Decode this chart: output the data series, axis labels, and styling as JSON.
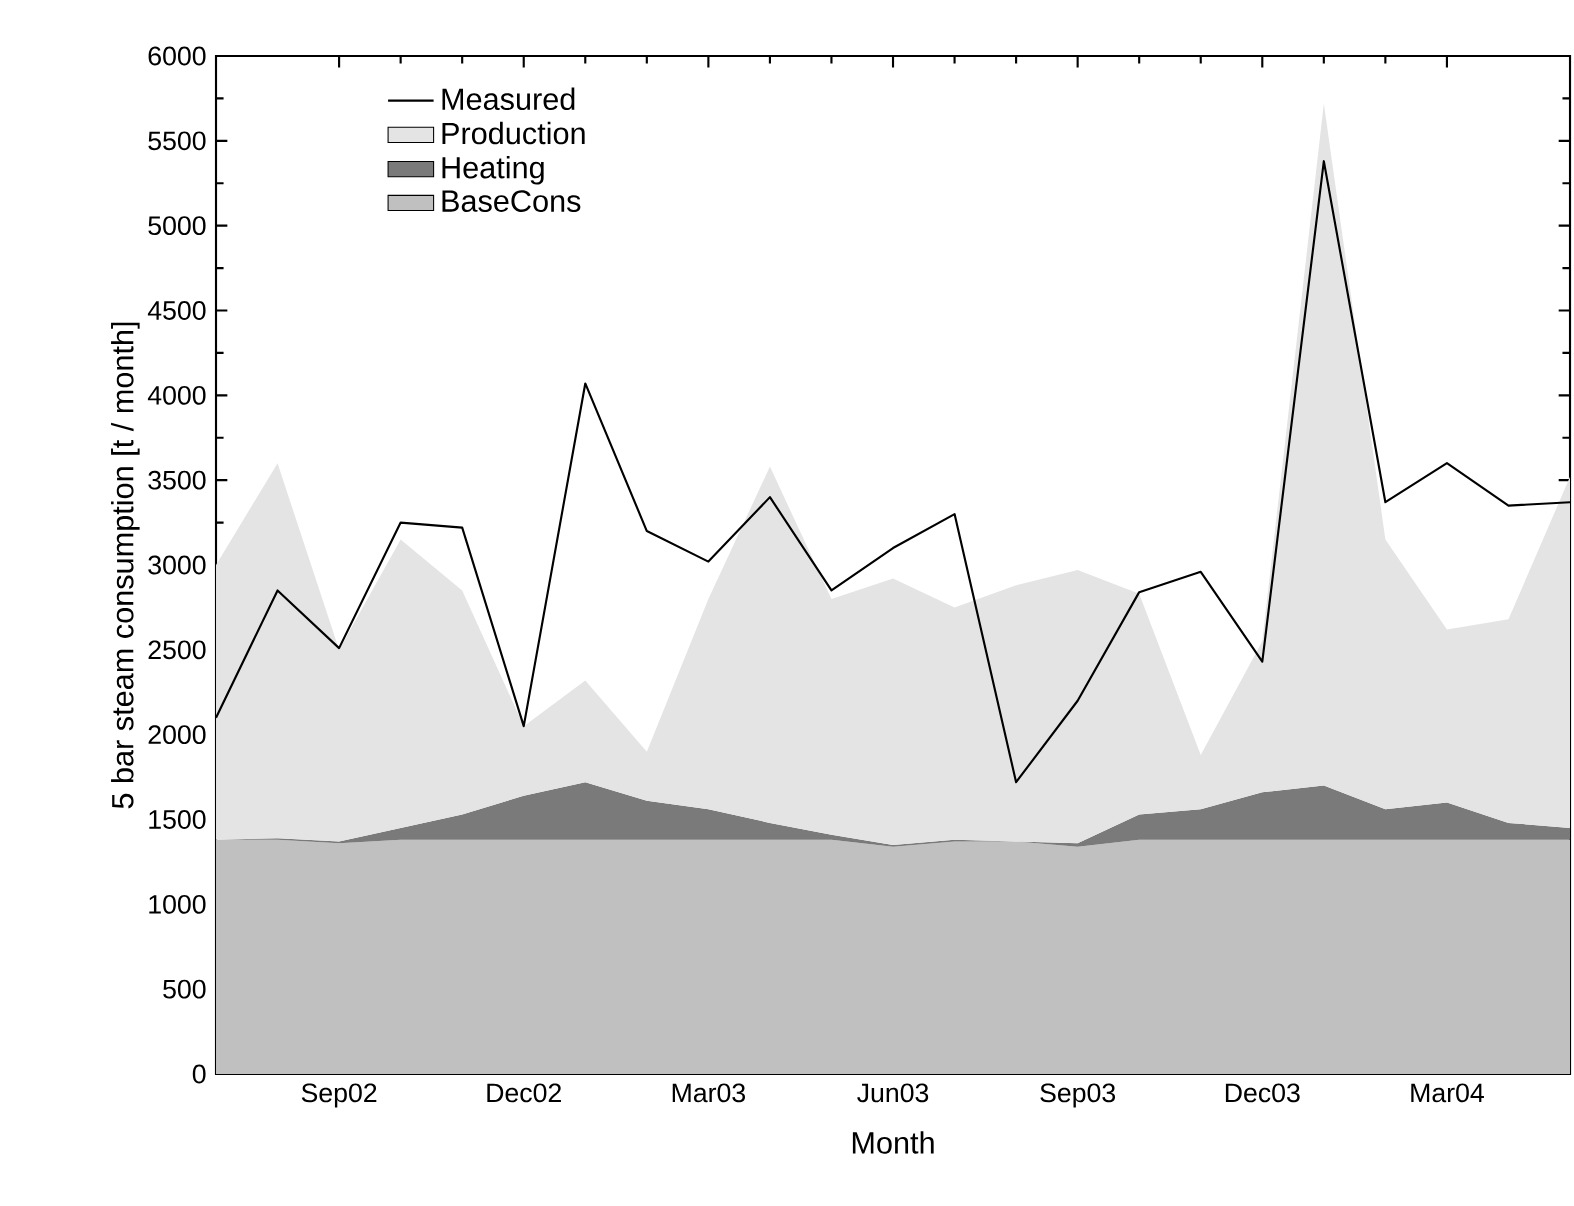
{
  "chart_data": {
    "type": "area",
    "xlabel": "Month",
    "ylabel": "5 bar steam consumption [t / month]",
    "x": [
      "2002-07",
      "2002-08",
      "2002-09",
      "2002-10",
      "2002-11",
      "2002-12",
      "2003-01",
      "2003-02",
      "2003-03",
      "2003-04",
      "2003-05",
      "2003-06",
      "2003-07",
      "2003-08",
      "2003-09",
      "2003-10",
      "2003-11",
      "2003-12",
      "2004-01",
      "2004-02",
      "2004-03",
      "2004-04",
      "2004-05"
    ],
    "stacked": true,
    "series": [
      {
        "name": "BaseCons",
        "color": "#c0c0c0",
        "values": [
          1380,
          1380,
          1360,
          1380,
          1380,
          1380,
          1380,
          1380,
          1380,
          1380,
          1380,
          1340,
          1370,
          1370,
          1340,
          1380,
          1380,
          1380,
          1380,
          1380,
          1380,
          1380,
          1380
        ]
      },
      {
        "name": "Heating",
        "color": "#7a7a7a",
        "values": [
          0,
          10,
          10,
          70,
          150,
          260,
          340,
          230,
          180,
          100,
          30,
          10,
          10,
          0,
          20,
          150,
          180,
          280,
          320,
          180,
          220,
          100,
          70
        ]
      },
      {
        "name": "Production",
        "color": "#e4e4e4",
        "values": [
          1620,
          2210,
          1130,
          1700,
          1320,
          410,
          600,
          290,
          1240,
          2100,
          1390,
          1570,
          1370,
          1510,
          1610,
          1300,
          320,
          890,
          4020,
          1590,
          1020,
          1200,
          2070
        ]
      },
      {
        "name": "Measured",
        "type": "line",
        "color": "#000000",
        "line_style": "solid",
        "values": [
          2100,
          2850,
          2510,
          3250,
          3220,
          2050,
          4070,
          3200,
          3020,
          3400,
          2850,
          3100,
          3300,
          1720,
          2200,
          2840,
          2960,
          2430,
          5380,
          3370,
          3600,
          3350,
          3370
        ]
      }
    ],
    "xlim": [
      "2002-07",
      "2004-05"
    ],
    "xticks": [
      {
        "value": "2002-09",
        "label": "Sep02"
      },
      {
        "value": "2002-12",
        "label": "Dec02"
      },
      {
        "value": "2003-03",
        "label": "Mar03"
      },
      {
        "value": "2003-06",
        "label": "Jun03"
      },
      {
        "value": "2003-09",
        "label": "Sep03"
      },
      {
        "value": "2003-12",
        "label": "Dec03"
      },
      {
        "value": "2004-03",
        "label": "Mar04"
      }
    ],
    "ylim": [
      0,
      6000
    ],
    "yticks": [
      0,
      500,
      1000,
      1500,
      2000,
      2500,
      3000,
      3500,
      4000,
      4500,
      5000,
      5500,
      6000
    ],
    "legend": "top left",
    "grid": false
  }
}
